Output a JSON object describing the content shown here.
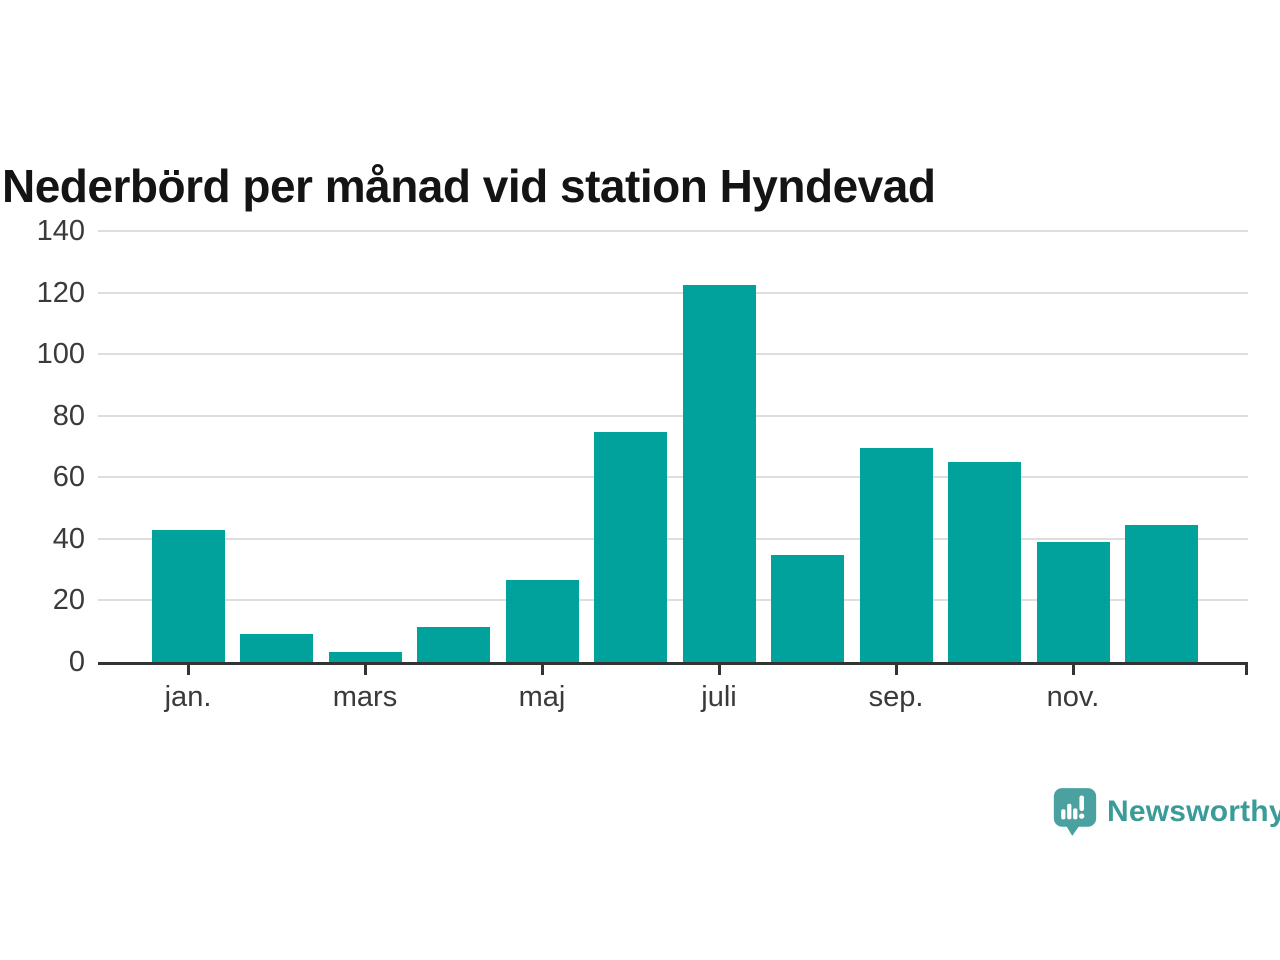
{
  "header": {
    "title": "Nederbörd per månad vid station Hyndevad"
  },
  "chart_data": {
    "type": "bar",
    "title": "Nederbörd per månad vid station Hyndevad",
    "categories": [
      "jan.",
      "",
      "mars",
      "",
      "maj",
      "",
      "juli",
      "",
      "sep.",
      "",
      "nov.",
      ""
    ],
    "x_tick_labels": [
      "jan.",
      "mars",
      "maj",
      "juli",
      "sep.",
      "nov."
    ],
    "values": [
      43,
      9,
      3.4,
      11.4,
      26.7,
      74.6,
      122.4,
      34.8,
      69.4,
      65,
      39,
      44.6
    ],
    "ylim": [
      0,
      140
    ],
    "yticks": [
      0,
      20,
      40,
      60,
      80,
      100,
      120,
      140
    ],
    "grid": true,
    "legend_position": "none",
    "bar_color": "#00a29b"
  },
  "footer": {
    "brand": "Newsworthy"
  },
  "colors": {
    "bar": "#00a29b",
    "brand_text": "#3b9b98",
    "brand_icon": "#4aa19f",
    "axis": "#333333",
    "gridline": "#dedede",
    "tick_label": "#3a3a3a"
  }
}
